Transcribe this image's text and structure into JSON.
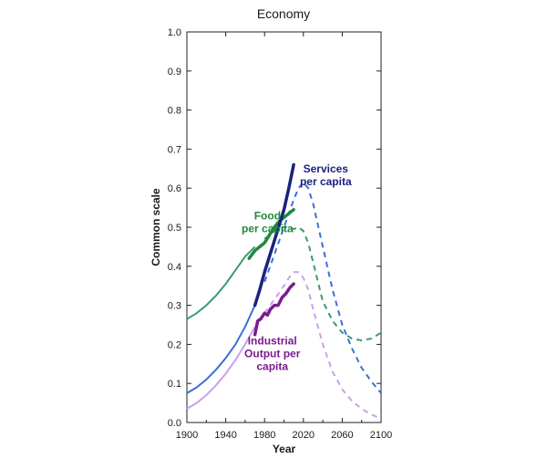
{
  "chart_data": {
    "type": "line",
    "title": "Economy",
    "xlabel": "Year",
    "ylabel": "Common scale",
    "xlim": [
      1900,
      2100
    ],
    "ylim": [
      0,
      1.0
    ],
    "x_ticks": [
      1900,
      1940,
      1980,
      2020,
      2060,
      2100
    ],
    "x_tick_labels": [
      "1900",
      "1940",
      "1980",
      "2020",
      "2060",
      "2100"
    ],
    "y_ticks": [
      0,
      0.1,
      0.2,
      0.3,
      0.4,
      0.5,
      0.6,
      0.7,
      0.8,
      0.9,
      1.0
    ],
    "y_tick_labels": [
      "0.0",
      "0.1",
      "0.2",
      "0.3",
      "0.4",
      "0.5",
      "0.6",
      "0.7",
      "0.8",
      "0.9",
      "1.0"
    ],
    "grid": false,
    "legend": "none",
    "series": [
      {
        "name": "Food per capita",
        "label_lines": [
          "Food",
          "per capita"
        ],
        "color": "#1e8a3a",
        "model_color": "#3a9a70",
        "model": {
          "x": [
            1900,
            1910,
            1920,
            1930,
            1940,
            1950,
            1960,
            1970,
            1980,
            1990,
            2000,
            2005,
            2010,
            2015,
            2020,
            2025,
            2030,
            2035,
            2040,
            2050,
            2060,
            2070,
            2080,
            2090,
            2100
          ],
          "y": [
            0.265,
            0.28,
            0.3,
            0.325,
            0.355,
            0.39,
            0.425,
            0.45,
            0.47,
            0.49,
            0.5,
            0.5,
            0.495,
            0.5,
            0.49,
            0.46,
            0.41,
            0.36,
            0.31,
            0.26,
            0.23,
            0.215,
            0.21,
            0.215,
            0.23
          ]
        },
        "observed": {
          "x": [
            1964,
            1970,
            1975,
            1980,
            1985,
            1990,
            1995,
            2000,
            2005,
            2010
          ],
          "y": [
            0.42,
            0.44,
            0.45,
            0.46,
            0.48,
            0.5,
            0.515,
            0.525,
            0.535,
            0.545
          ]
        }
      },
      {
        "name": "Services per capita",
        "label_lines": [
          "Services",
          "per capita"
        ],
        "color": "#1a237e",
        "model_color": "#3a6fd8",
        "model": {
          "x": [
            1900,
            1910,
            1920,
            1930,
            1940,
            1950,
            1960,
            1970,
            1980,
            1990,
            2000,
            2010,
            2015,
            2020,
            2025,
            2030,
            2040,
            2050,
            2060,
            2070,
            2080,
            2090,
            2100
          ],
          "y": [
            0.075,
            0.09,
            0.11,
            0.135,
            0.165,
            0.2,
            0.245,
            0.3,
            0.36,
            0.43,
            0.5,
            0.57,
            0.6,
            0.615,
            0.6,
            0.56,
            0.45,
            0.34,
            0.25,
            0.19,
            0.14,
            0.105,
            0.075
          ]
        },
        "observed": {
          "x": [
            1970,
            1975,
            1980,
            1985,
            1990,
            1995,
            2000,
            2005,
            2010
          ],
          "y": [
            0.3,
            0.34,
            0.385,
            0.425,
            0.465,
            0.505,
            0.545,
            0.6,
            0.66
          ]
        }
      },
      {
        "name": "Industrial Output per capita",
        "label_lines": [
          "Industrial",
          "Output per",
          "capita"
        ],
        "color": "#7b1a8e",
        "model_color": "#c9a0ec",
        "model": {
          "x": [
            1900,
            1910,
            1920,
            1930,
            1940,
            1950,
            1960,
            1970,
            1980,
            1990,
            2000,
            2005,
            2010,
            2015,
            2020,
            2025,
            2030,
            2040,
            2050,
            2060,
            2070,
            2080,
            2090,
            2100
          ],
          "y": [
            0.035,
            0.05,
            0.07,
            0.095,
            0.125,
            0.16,
            0.2,
            0.245,
            0.28,
            0.315,
            0.35,
            0.37,
            0.385,
            0.385,
            0.37,
            0.34,
            0.29,
            0.2,
            0.13,
            0.085,
            0.055,
            0.035,
            0.02,
            0.01
          ]
        },
        "observed": {
          "x": [
            1970,
            1973,
            1976,
            1980,
            1983,
            1986,
            1990,
            1994,
            1998,
            2002,
            2006,
            2010
          ],
          "y": [
            0.225,
            0.26,
            0.265,
            0.28,
            0.275,
            0.29,
            0.3,
            0.3,
            0.32,
            0.33,
            0.345,
            0.355
          ]
        }
      }
    ]
  }
}
